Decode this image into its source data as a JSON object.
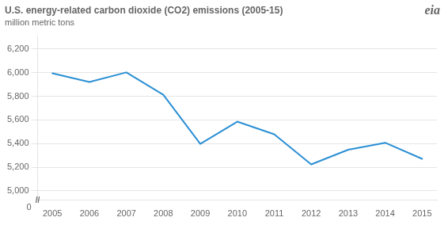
{
  "chart_data": {
    "type": "line",
    "title": "U.S. energy-related carbon dioxide (CO2) emissions (2005-15)",
    "subtitle": "million metric tons",
    "annotations": [
      "//",
      "0",
      "eia"
    ],
    "x": [
      2005,
      2006,
      2007,
      2008,
      2009,
      2010,
      2011,
      2012,
      2013,
      2014,
      2015
    ],
    "values": [
      5996,
      5922,
      6003,
      5814,
      5397,
      5586,
      5479,
      5224,
      5348,
      5407,
      5271
    ],
    "color": "#2b8fd4",
    "xlim": [
      2004.6,
      2015.4
    ],
    "xticks": [
      2005,
      2006,
      2007,
      2008,
      2009,
      2010,
      2011,
      2012,
      2013,
      2014,
      2015
    ],
    "ylim": [
      4920,
      6310
    ],
    "yticks": [
      {
        "value": 5000,
        "label": "5,000"
      },
      {
        "value": 5200,
        "label": "5,200"
      },
      {
        "value": 5400,
        "label": "5,400"
      },
      {
        "value": 5600,
        "label": "5,600"
      },
      {
        "value": 5800,
        "label": "5,800"
      },
      {
        "value": 6000,
        "label": "6,000"
      },
      {
        "value": 6200,
        "label": "6,200"
      }
    ],
    "grid": true
  }
}
